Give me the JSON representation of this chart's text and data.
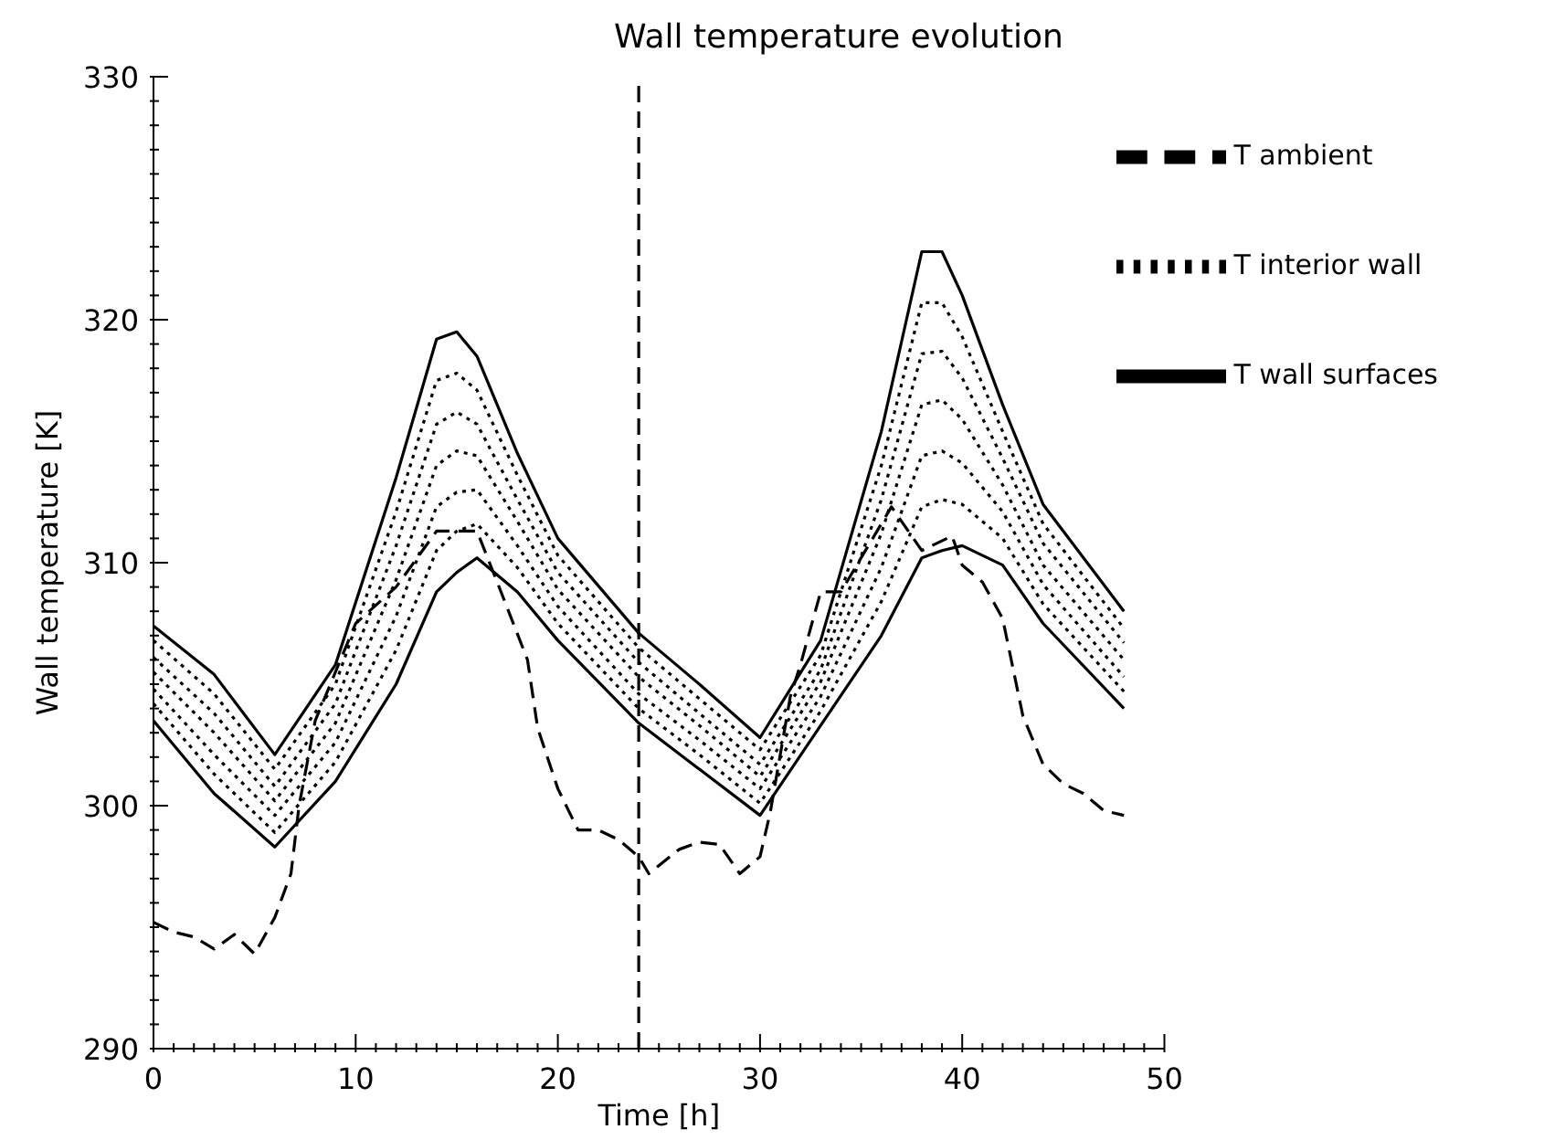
{
  "chart_data": {
    "type": "line",
    "title": "Wall temperature evolution",
    "xlabel": "Time [h]",
    "ylabel": "Wall temperature [K]",
    "x": [
      0,
      3,
      6,
      9,
      12,
      14,
      15,
      16,
      18,
      20,
      24,
      27,
      30,
      33,
      36,
      38,
      39,
      40,
      42,
      44,
      48
    ],
    "series": [
      {
        "name": "T ambient",
        "color": "#000000",
        "line_style": "dashed",
        "x": [
          0,
          1,
          2,
          3,
          4,
          5,
          6,
          6.8,
          7.2,
          8,
          10,
          12,
          14,
          16,
          17,
          18.5,
          19,
          20,
          21,
          22,
          23,
          24,
          24.5,
          26,
          27,
          28,
          29,
          30,
          30.5,
          31.5,
          32,
          33,
          34,
          36.5,
          38,
          39.5,
          40,
          41,
          42,
          43,
          44,
          45,
          46,
          47,
          48
        ],
        "values": [
          295.2,
          294.8,
          294.6,
          294.1,
          294.7,
          293.9,
          295.4,
          297.2,
          300.0,
          303.5,
          307.5,
          309.0,
          311.3,
          311.3,
          309.2,
          306.0,
          303.2,
          300.7,
          299.0,
          299.0,
          298.6,
          297.9,
          297.2,
          298.2,
          298.5,
          298.4,
          297.2,
          297.9,
          299.7,
          304.5,
          305.8,
          308.8,
          308.8,
          312.3,
          310.5,
          311.1,
          309.9,
          309.2,
          307.7,
          303.7,
          301.7,
          300.9,
          300.5,
          299.8,
          299.6
        ]
      },
      {
        "name": "T wall surfaces",
        "color": "#000000",
        "line_style": "solid",
        "values": [
          307.4,
          305.4,
          302.1,
          305.8,
          313.5,
          319.2,
          319.5,
          318.5,
          314.5,
          311.0,
          307.1,
          305.0,
          302.8,
          306.8,
          315.4,
          322.8,
          322.8,
          321.0,
          316.5,
          312.4,
          308.0
        ]
      },
      {
        "color": "#000000",
        "line_style": "solid",
        "values": [
          303.5,
          300.5,
          298.3,
          301.0,
          305.0,
          308.8,
          309.6,
          310.2,
          308.8,
          306.8,
          303.4,
          301.5,
          299.6,
          303.3,
          307.0,
          310.2,
          310.5,
          310.7,
          309.9,
          307.5,
          304.0
        ]
      },
      {
        "name": "T interior wall",
        "color": "#000000",
        "line_style": "dotted",
        "values": [
          306.8,
          304.6,
          301.5,
          305.0,
          312.1,
          317.5,
          317.8,
          317.1,
          313.6,
          310.3,
          306.5,
          304.4,
          302.3,
          306.2,
          314.0,
          320.7,
          320.7,
          319.3,
          315.4,
          311.6,
          307.3
        ]
      },
      {
        "color": "#000000",
        "line_style": "dotted",
        "values": [
          306.1,
          303.8,
          300.8,
          304.2,
          310.7,
          315.7,
          316.2,
          315.7,
          312.6,
          309.6,
          305.9,
          303.8,
          301.7,
          305.6,
          312.6,
          318.6,
          318.7,
          317.6,
          314.3,
          310.8,
          306.7
        ]
      },
      {
        "color": "#000000",
        "line_style": "dotted",
        "values": [
          305.5,
          303.0,
          300.2,
          303.4,
          309.3,
          314.0,
          314.6,
          314.4,
          311.7,
          308.9,
          305.3,
          303.3,
          301.2,
          305.1,
          311.2,
          316.5,
          316.7,
          315.9,
          313.2,
          309.9,
          306.0
        ]
      },
      {
        "color": "#000000",
        "line_style": "dotted",
        "values": [
          304.8,
          302.1,
          299.6,
          302.6,
          307.8,
          312.3,
          312.9,
          313.0,
          310.7,
          308.2,
          304.6,
          302.7,
          300.7,
          304.5,
          309.8,
          314.4,
          314.6,
          314.1,
          312.1,
          309.1,
          305.3
        ]
      },
      {
        "color": "#000000",
        "line_style": "dotted",
        "values": [
          304.2,
          301.3,
          298.9,
          301.8,
          306.4,
          310.5,
          311.3,
          311.6,
          309.8,
          307.5,
          304.0,
          302.1,
          300.1,
          303.9,
          308.4,
          312.3,
          312.6,
          312.4,
          311.0,
          308.3,
          304.7
        ]
      }
    ],
    "ref_lines": [
      {
        "axis": "x",
        "value": 24,
        "color": "#000000",
        "line_style": "dashed"
      }
    ],
    "xlim": [
      0,
      50
    ],
    "xticks": [
      0,
      {
        "value": 1,
        "label": null
      },
      {
        "value": 2,
        "label": null
      },
      {
        "value": 3,
        "label": null
      },
      {
        "value": 4,
        "label": null
      },
      {
        "value": 5,
        "label": null
      },
      {
        "value": 6,
        "label": null
      },
      {
        "value": 7,
        "label": null
      },
      {
        "value": 8,
        "label": null
      },
      {
        "value": 9,
        "label": null
      },
      10,
      {
        "value": 11,
        "label": null
      },
      {
        "value": 12,
        "label": null
      },
      {
        "value": 13,
        "label": null
      },
      {
        "value": 14,
        "label": null
      },
      {
        "value": 15,
        "label": null
      },
      {
        "value": 16,
        "label": null
      },
      {
        "value": 17,
        "label": null
      },
      {
        "value": 18,
        "label": null
      },
      {
        "value": 19,
        "label": null
      },
      20,
      {
        "value": 21,
        "label": null
      },
      {
        "value": 22,
        "label": null
      },
      {
        "value": 23,
        "label": null
      },
      {
        "value": 24,
        "label": null
      },
      {
        "value": 25,
        "label": null
      },
      {
        "value": 26,
        "label": null
      },
      {
        "value": 27,
        "label": null
      },
      {
        "value": 28,
        "label": null
      },
      {
        "value": 29,
        "label": null
      },
      30,
      {
        "value": 31,
        "label": null
      },
      {
        "value": 32,
        "label": null
      },
      {
        "value": 33,
        "label": null
      },
      {
        "value": 34,
        "label": null
      },
      {
        "value": 35,
        "label": null
      },
      {
        "value": 36,
        "label": null
      },
      {
        "value": 37,
        "label": null
      },
      {
        "value": 38,
        "label": null
      },
      {
        "value": 39,
        "label": null
      },
      40,
      {
        "value": 41,
        "label": null
      },
      {
        "value": 42,
        "label": null
      },
      {
        "value": 43,
        "label": null
      },
      {
        "value": 44,
        "label": null
      },
      {
        "value": 45,
        "label": null
      },
      {
        "value": 46,
        "label": null
      },
      {
        "value": 47,
        "label": null
      },
      {
        "value": 48,
        "label": null
      },
      {
        "value": 49,
        "label": null
      },
      50
    ],
    "ylim": [
      290,
      330
    ],
    "yticks": [
      290,
      {
        "value": 291,
        "label": null
      },
      {
        "value": 292,
        "label": null
      },
      {
        "value": 293,
        "label": null
      },
      {
        "value": 294,
        "label": null
      },
      {
        "value": 295,
        "label": null
      },
      {
        "value": 296,
        "label": null
      },
      {
        "value": 297,
        "label": null
      },
      {
        "value": 298,
        "label": null
      },
      {
        "value": 299,
        "label": null
      },
      300,
      {
        "value": 301,
        "label": null
      },
      {
        "value": 302,
        "label": null
      },
      {
        "value": 303,
        "label": null
      },
      {
        "value": 304,
        "label": null
      },
      {
        "value": 305,
        "label": null
      },
      {
        "value": 306,
        "label": null
      },
      {
        "value": 307,
        "label": null
      },
      {
        "value": 308,
        "label": null
      },
      {
        "value": 309,
        "label": null
      },
      310,
      {
        "value": 311,
        "label": null
      },
      {
        "value": 312,
        "label": null
      },
      {
        "value": 313,
        "label": null
      },
      {
        "value": 314,
        "label": null
      },
      {
        "value": 315,
        "label": null
      },
      {
        "value": 316,
        "label": null
      },
      {
        "value": 317,
        "label": null
      },
      {
        "value": 318,
        "label": null
      },
      {
        "value": 319,
        "label": null
      },
      320,
      {
        "value": 321,
        "label": null
      },
      {
        "value": 322,
        "label": null
      },
      {
        "value": 323,
        "label": null
      },
      {
        "value": 324,
        "label": null
      },
      {
        "value": 325,
        "label": null
      },
      {
        "value": 326,
        "label": null
      },
      {
        "value": 327,
        "label": null
      },
      {
        "value": 328,
        "label": null
      },
      {
        "value": 329,
        "label": null
      },
      330
    ],
    "legend": "top right",
    "marker": "none",
    "grid": false
  }
}
